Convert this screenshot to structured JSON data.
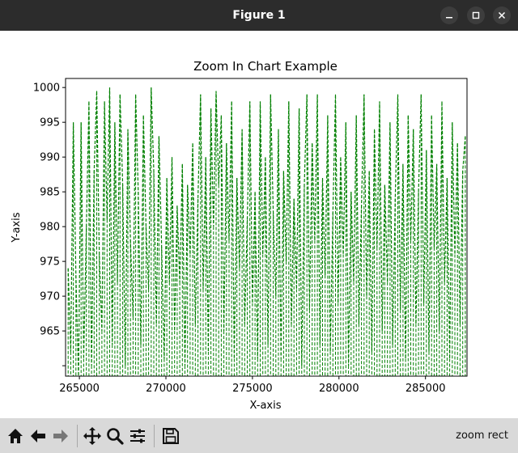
{
  "window": {
    "title": "Figure 1"
  },
  "toolbar": {
    "buttons": [
      {
        "name": "home-button",
        "icon": "home-icon"
      },
      {
        "name": "back-button",
        "icon": "arrow-left-icon"
      },
      {
        "name": "forward-button",
        "icon": "arrow-right-icon"
      },
      {
        "name": "pan-button",
        "icon": "move-icon"
      },
      {
        "name": "zoom-button",
        "icon": "magnifier-icon"
      },
      {
        "name": "configure-subplots-button",
        "icon": "sliders-icon"
      },
      {
        "name": "save-button",
        "icon": "floppy-icon"
      }
    ],
    "status": "zoom rect"
  },
  "chart_data": {
    "type": "line",
    "title": "Zoom In Chart Example",
    "xlabel": "X-axis",
    "ylabel": "Y-axis",
    "xlim": [
      264200,
      287400
    ],
    "ylim": [
      958.5,
      1001.3
    ],
    "xticks": [
      265000,
      270000,
      275000,
      280000,
      285000
    ],
    "yticks": [
      960,
      965,
      970,
      975,
      980,
      985,
      990,
      995,
      1000
    ],
    "ytick_labels": [
      "",
      "965",
      "970",
      "975",
      "980",
      "985",
      "990",
      "995",
      "1000"
    ],
    "grid": false,
    "series": [
      {
        "color": "#008000",
        "linestyle": "dashed",
        "x": [
          264200,
          287400
        ],
        "y_range": [
          958.5,
          1000
        ],
        "note_points": [
          [
            264350,
            974
          ],
          [
            264500,
            962
          ],
          [
            264650,
            995
          ],
          [
            264800,
            973
          ],
          [
            264950,
            958.5
          ],
          [
            265100,
            995
          ],
          [
            265250,
            961
          ],
          [
            265400,
            980
          ],
          [
            265550,
            998
          ],
          [
            265700,
            960
          ],
          [
            265850,
            988
          ],
          [
            266000,
            999.5
          ],
          [
            266150,
            976
          ],
          [
            266300,
            965
          ],
          [
            266450,
            998
          ],
          [
            266600,
            981
          ],
          [
            266750,
            1000
          ],
          [
            266900,
            963
          ],
          [
            267050,
            995
          ],
          [
            267200,
            972
          ],
          [
            267350,
            999
          ],
          [
            267500,
            986
          ],
          [
            267650,
            960
          ],
          [
            267800,
            994
          ],
          [
            267950,
            978
          ],
          [
            268100,
            967
          ],
          [
            268250,
            999
          ],
          [
            268400,
            985
          ],
          [
            268550,
            963
          ],
          [
            268700,
            996
          ],
          [
            268850,
            980
          ],
          [
            269000,
            971
          ],
          [
            269150,
            1000
          ],
          [
            269300,
            988
          ],
          [
            269450,
            966
          ],
          [
            269600,
            993
          ],
          [
            269750,
            977
          ],
          [
            269900,
            961
          ],
          [
            270050,
            987
          ],
          [
            270200,
            972
          ],
          [
            270350,
            990
          ],
          [
            270500,
            965
          ],
          [
            270650,
            983
          ],
          [
            270800,
            972
          ],
          [
            270950,
            989
          ],
          [
            271100,
            960
          ],
          [
            271250,
            986
          ],
          [
            271400,
            976
          ],
          [
            271550,
            992
          ],
          [
            271700,
            966
          ],
          [
            271850,
            984
          ],
          [
            272000,
            999
          ],
          [
            272150,
            971
          ],
          [
            272300,
            990
          ],
          [
            272450,
            962
          ],
          [
            272600,
            997
          ],
          [
            272750,
            980
          ],
          [
            272900,
            999.5
          ],
          [
            273050,
            986
          ],
          [
            273200,
            996
          ],
          [
            273350,
            965
          ],
          [
            273500,
            992
          ],
          [
            273650,
            978
          ],
          [
            273800,
            998
          ],
          [
            273950,
            961
          ],
          [
            274100,
            987
          ],
          [
            274250,
            974
          ],
          [
            274400,
            994
          ],
          [
            274550,
            966
          ],
          [
            274700,
            981
          ],
          [
            274850,
            998
          ],
          [
            275000,
            969
          ],
          [
            275150,
            985
          ],
          [
            275300,
            961
          ],
          [
            275450,
            998
          ],
          [
            275600,
            976
          ],
          [
            275750,
            990
          ],
          [
            275900,
            963
          ],
          [
            276050,
            999
          ],
          [
            276200,
            982
          ],
          [
            276350,
            970
          ],
          [
            276500,
            994
          ],
          [
            276650,
            961
          ],
          [
            276800,
            988
          ],
          [
            276950,
            975
          ],
          [
            277100,
            998
          ],
          [
            277250,
            966
          ],
          [
            277400,
            984
          ],
          [
            277550,
            971
          ],
          [
            277700,
            997
          ],
          [
            277850,
            960
          ],
          [
            278000,
            986
          ],
          [
            278150,
            999
          ],
          [
            278300,
            968
          ],
          [
            278450,
            992
          ],
          [
            278600,
            978
          ],
          [
            278750,
            999
          ],
          [
            278900,
            963
          ],
          [
            279050,
            987
          ],
          [
            279200,
            973
          ],
          [
            279350,
            996
          ],
          [
            279500,
            962
          ],
          [
            279650,
            982
          ],
          [
            279800,
            999
          ],
          [
            279950,
            969
          ],
          [
            280100,
            990
          ],
          [
            280250,
            976
          ],
          [
            280400,
            995
          ],
          [
            280550,
            960
          ],
          [
            280700,
            985
          ],
          [
            280850,
            972
          ],
          [
            281000,
            996
          ],
          [
            281150,
            966
          ],
          [
            281300,
            983
          ],
          [
            281450,
            999
          ],
          [
            281600,
            970
          ],
          [
            281750,
            988
          ],
          [
            281900,
            962
          ],
          [
            282050,
            994
          ],
          [
            282200,
            977
          ],
          [
            282350,
            998
          ],
          [
            282500,
            965
          ],
          [
            282650,
            986
          ],
          [
            282800,
            972
          ],
          [
            282950,
            995
          ],
          [
            283100,
            963
          ],
          [
            283250,
            984
          ],
          [
            283400,
            999
          ],
          [
            283550,
            968
          ],
          [
            283700,
            989
          ],
          [
            283850,
            961
          ],
          [
            284000,
            996
          ],
          [
            284150,
            978
          ],
          [
            284300,
            994
          ],
          [
            284450,
            966
          ],
          [
            284600,
            985
          ],
          [
            284750,
            999
          ],
          [
            284900,
            969
          ],
          [
            285050,
            991
          ],
          [
            285200,
            962
          ],
          [
            285350,
            996
          ],
          [
            285500,
            977
          ],
          [
            285650,
            989
          ],
          [
            285800,
            965
          ],
          [
            285950,
            998
          ],
          [
            286100,
            972
          ],
          [
            286250,
            987
          ],
          [
            286400,
            961
          ],
          [
            286550,
            995
          ],
          [
            286700,
            976
          ],
          [
            286850,
            992
          ],
          [
            287000,
            966
          ],
          [
            287150,
            988
          ],
          [
            287300,
            993
          ]
        ]
      }
    ]
  }
}
